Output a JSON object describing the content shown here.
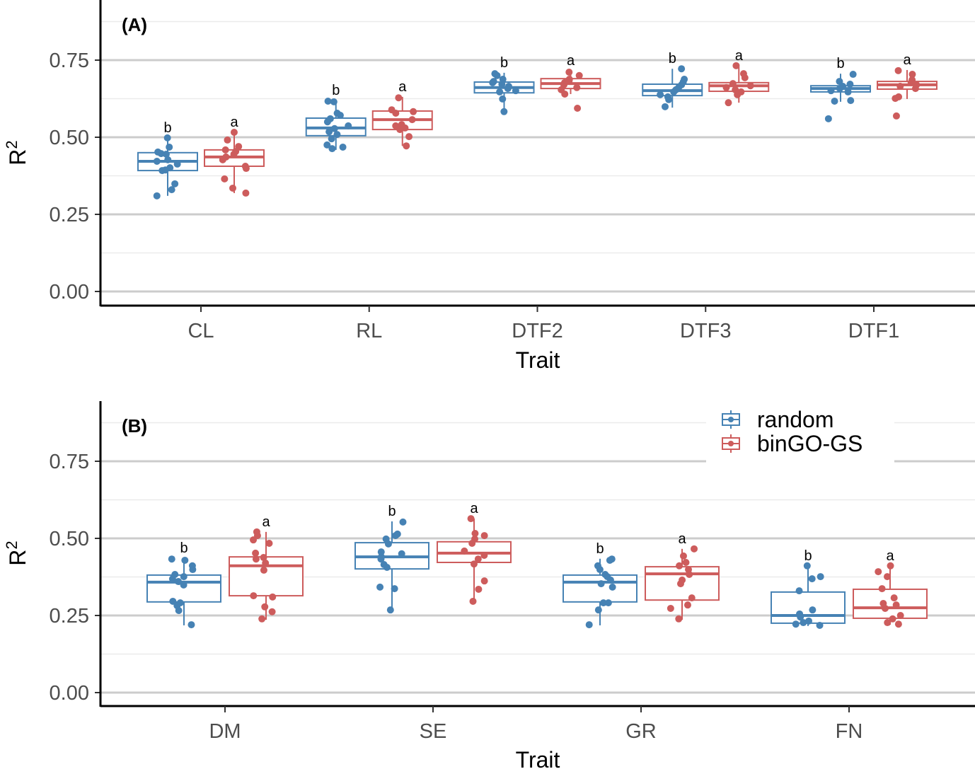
{
  "colors": {
    "random": "#4682B4",
    "binGO-GS": "#CD5C5C",
    "grid_major": "#cccccc",
    "grid_minor": "#ebebeb"
  },
  "legend": {
    "entries": [
      "random",
      "binGO-GS"
    ],
    "position": "top-right of panel B"
  },
  "chart_data": [
    {
      "type": "box",
      "title": "(A)",
      "xlabel": "Trait",
      "ylabel": "R2",
      "ylim": [
        -0.046,
        0.945
      ],
      "yticks": [
        "0.00",
        "0.25",
        "0.50",
        "0.75"
      ],
      "ytick_values": [
        0,
        0.25,
        0.5,
        0.75
      ],
      "grid": true,
      "categories": [
        "CL",
        "RL",
        "DTF2",
        "DTF3",
        "DTF1"
      ],
      "series": [
        {
          "name": "random",
          "letters": [
            "b",
            "b",
            "b",
            "b",
            "b"
          ],
          "boxes": [
            {
              "q1": 0.392,
              "median": 0.422,
              "q3": 0.45,
              "lo": 0.31,
              "hi": 0.498
            },
            {
              "q1": 0.505,
              "median": 0.53,
              "q3": 0.562,
              "lo": 0.459,
              "hi": 0.619
            },
            {
              "q1": 0.644,
              "median": 0.661,
              "q3": 0.679,
              "lo": 0.583,
              "hi": 0.709
            },
            {
              "q1": 0.635,
              "median": 0.651,
              "q3": 0.672,
              "lo": 0.596,
              "hi": 0.722
            },
            {
              "q1": 0.647,
              "median": 0.658,
              "q3": 0.667,
              "lo": 0.615,
              "hi": 0.706
            }
          ],
          "points": [
            [
              0.498,
              0.468,
              0.452,
              0.447,
              0.445,
              0.427,
              0.422,
              0.413,
              0.401,
              0.394,
              0.392,
              0.349,
              0.33,
              0.31
            ],
            [
              0.617,
              0.615,
              0.578,
              0.571,
              0.56,
              0.55,
              0.537,
              0.528,
              0.518,
              0.509,
              0.495,
              0.475,
              0.468,
              0.463
            ],
            [
              0.706,
              0.7,
              0.688,
              0.681,
              0.677,
              0.672,
              0.665,
              0.658,
              0.651,
              0.647,
              0.624,
              0.583
            ],
            [
              0.722,
              0.688,
              0.679,
              0.67,
              0.661,
              0.654,
              0.647,
              0.638,
              0.631,
              0.622,
              0.599
            ],
            [
              0.704,
              0.681,
              0.672,
              0.665,
              0.658,
              0.651,
              0.647,
              0.619,
              0.617,
              0.56
            ]
          ]
        },
        {
          "name": "binGO-GS",
          "letters": [
            "a",
            "a",
            "a",
            "a",
            "a"
          ],
          "boxes": [
            {
              "q1": 0.406,
              "median": 0.436,
              "q3": 0.459,
              "lo": 0.319,
              "hi": 0.516
            },
            {
              "q1": 0.525,
              "median": 0.557,
              "q3": 0.585,
              "lo": 0.472,
              "hi": 0.631
            },
            {
              "q1": 0.658,
              "median": 0.674,
              "q3": 0.69,
              "lo": 0.64,
              "hi": 0.716
            },
            {
              "q1": 0.649,
              "median": 0.667,
              "q3": 0.677,
              "lo": 0.612,
              "hi": 0.729
            },
            {
              "q1": 0.656,
              "median": 0.67,
              "q3": 0.681,
              "lo": 0.624,
              "hi": 0.718
            }
          ],
          "points": [
            [
              0.516,
              0.491,
              0.47,
              0.459,
              0.454,
              0.445,
              0.436,
              0.427,
              0.406,
              0.399,
              0.365,
              0.335,
              0.319
            ],
            [
              0.628,
              0.589,
              0.583,
              0.578,
              0.557,
              0.541,
              0.537,
              0.53,
              0.525,
              0.502,
              0.472
            ],
            [
              0.711,
              0.7,
              0.688,
              0.683,
              0.677,
              0.67,
              0.661,
              0.654,
              0.64,
              0.594
            ],
            [
              0.732,
              0.706,
              0.693,
              0.674,
              0.667,
              0.661,
              0.654,
              0.647,
              0.638,
              0.612
            ],
            [
              0.716,
              0.704,
              0.686,
              0.677,
              0.67,
              0.665,
              0.658,
              0.631,
              0.626,
              0.569
            ]
          ]
        }
      ]
    },
    {
      "type": "box",
      "title": "(B)",
      "xlabel": "Trait",
      "ylabel": "R2",
      "ylim": [
        -0.044,
        0.945
      ],
      "yticks": [
        "0.00",
        "0.25",
        "0.50",
        "0.75"
      ],
      "ytick_values": [
        0,
        0.25,
        0.5,
        0.75
      ],
      "grid": true,
      "categories": [
        "DM",
        "SE",
        "GR",
        "FN"
      ],
      "series": [
        {
          "name": "random",
          "letters": [
            "b",
            "b",
            "b",
            "b"
          ],
          "boxes": [
            {
              "q1": 0.294,
              "median": 0.358,
              "q3": 0.381,
              "lo": 0.218,
              "hi": 0.436
            },
            {
              "q1": 0.401,
              "median": 0.44,
              "q3": 0.486,
              "lo": 0.268,
              "hi": 0.555
            },
            {
              "q1": 0.294,
              "median": 0.358,
              "q3": 0.381,
              "lo": 0.218,
              "hi": 0.434
            },
            {
              "q1": 0.225,
              "median": 0.25,
              "q3": 0.326,
              "lo": 0.216,
              "hi": 0.41
            }
          ],
          "points": [
            [
              0.433,
              0.429,
              0.411,
              0.399,
              0.383,
              0.376,
              0.369,
              0.36,
              0.349,
              0.296,
              0.291,
              0.282,
              0.266,
              0.22
            ],
            [
              0.553,
              0.514,
              0.509,
              0.498,
              0.482,
              0.456,
              0.45,
              0.44,
              0.433,
              0.415,
              0.406,
              0.342,
              0.337,
              0.268
            ],
            [
              0.433,
              0.429,
              0.411,
              0.399,
              0.383,
              0.376,
              0.365,
              0.353,
              0.342,
              0.291,
              0.291,
              0.268,
              0.22
            ],
            [
              0.411,
              0.376,
              0.369,
              0.33,
              0.268,
              0.255,
              0.245,
              0.232,
              0.227,
              0.222,
              0.218
            ]
          ]
        },
        {
          "name": "binGO-GS",
          "letters": [
            "a",
            "a",
            "a",
            "a"
          ],
          "boxes": [
            {
              "q1": 0.314,
              "median": 0.411,
              "q3": 0.44,
              "lo": 0.236,
              "hi": 0.521
            },
            {
              "q1": 0.422,
              "median": 0.452,
              "q3": 0.489,
              "lo": 0.296,
              "hi": 0.564
            },
            {
              "q1": 0.3,
              "median": 0.385,
              "q3": 0.408,
              "lo": 0.236,
              "hi": 0.466
            },
            {
              "q1": 0.241,
              "median": 0.275,
              "q3": 0.335,
              "lo": 0.22,
              "hi": 0.41
            }
          ],
          "points": [
            [
              0.521,
              0.509,
              0.495,
              0.484,
              0.452,
              0.438,
              0.433,
              0.42,
              0.397,
              0.314,
              0.31,
              0.278,
              0.262,
              0.239
            ],
            [
              0.564,
              0.516,
              0.509,
              0.498,
              0.484,
              0.459,
              0.445,
              0.433,
              0.417,
              0.362,
              0.335,
              0.296
            ],
            [
              0.466,
              0.443,
              0.422,
              0.411,
              0.399,
              0.383,
              0.365,
              0.353,
              0.307,
              0.284,
              0.273,
              0.239
            ],
            [
              0.411,
              0.392,
              0.376,
              0.337,
              0.307,
              0.289,
              0.284,
              0.273,
              0.25,
              0.239,
              0.227,
              0.222
            ]
          ]
        }
      ]
    }
  ]
}
